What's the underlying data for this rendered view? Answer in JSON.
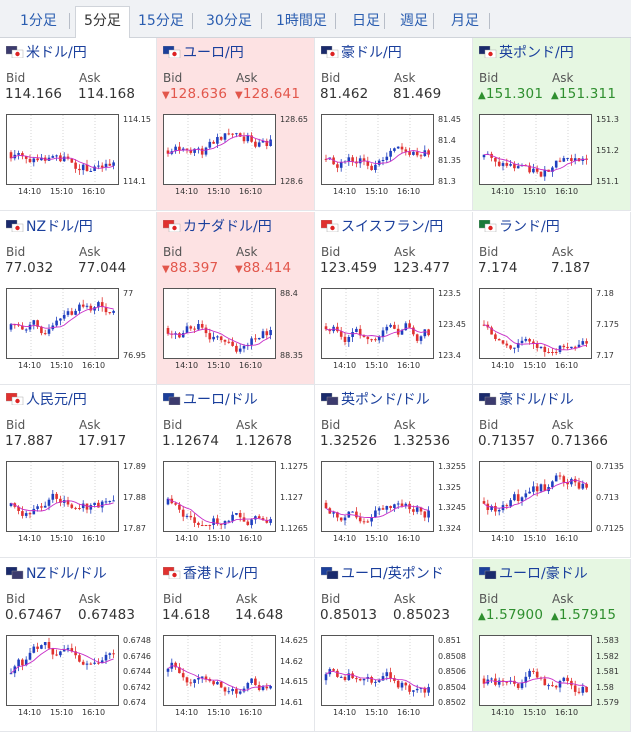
{
  "tabs": [
    "1分足",
    "5分足",
    "15分足",
    "30分足",
    "1時間足",
    "日足",
    "週足",
    "月足"
  ],
  "active_tab": 1,
  "labels": {
    "bid": "Bid",
    "ask": "Ask"
  },
  "time_labels": [
    "14:10",
    "15:10",
    "16:10"
  ],
  "colors": {
    "up_candle": "#1f3fbf",
    "down_candle": "#e0312f",
    "ma_line": "#c82ec8",
    "down_bg": "#fde2e3",
    "up_bg": "#e6f7e2"
  },
  "pairs": [
    {
      "name": "米ドル/円",
      "flag": "us-jp-flag-icon",
      "bid": "114.166",
      "ask": "114.168",
      "trend": "none",
      "yticks": [
        "114.15",
        "114.1"
      ]
    },
    {
      "name": "ユーロ/円",
      "flag": "eu-jp-flag-icon",
      "bid": "128.636",
      "ask": "128.641",
      "trend": "down",
      "yticks": [
        "128.65",
        "128.6"
      ]
    },
    {
      "name": "豪ドル/円",
      "flag": "au-jp-flag-icon",
      "bid": "81.462",
      "ask": "81.469",
      "trend": "none",
      "yticks": [
        "81.45",
        "81.4",
        "81.35",
        "81.3"
      ]
    },
    {
      "name": "英ポンド/円",
      "flag": "gb-jp-flag-icon",
      "bid": "151.301",
      "ask": "151.311",
      "trend": "up",
      "yticks": [
        "151.3",
        "151.2",
        "151.1"
      ]
    },
    {
      "name": "NZドル/円",
      "flag": "nz-jp-flag-icon",
      "bid": "77.032",
      "ask": "77.044",
      "trend": "none",
      "yticks": [
        "77",
        "76.95"
      ]
    },
    {
      "name": "カナダドル/円",
      "flag": "ca-jp-flag-icon",
      "bid": "88.397",
      "ask": "88.414",
      "trend": "down",
      "yticks": [
        "88.4",
        "88.35"
      ]
    },
    {
      "name": "スイスフラン/円",
      "flag": "ch-jp-flag-icon",
      "bid": "123.459",
      "ask": "123.477",
      "trend": "none",
      "yticks": [
        "123.5",
        "123.45",
        "123.4"
      ]
    },
    {
      "name": "ランド/円",
      "flag": "za-jp-flag-icon",
      "bid": "7.174",
      "ask": "7.187",
      "trend": "none",
      "yticks": [
        "7.18",
        "7.175",
        "7.17"
      ]
    },
    {
      "name": "人民元/円",
      "flag": "cn-jp-flag-icon",
      "bid": "17.887",
      "ask": "17.917",
      "trend": "none",
      "yticks": [
        "17.89",
        "17.88",
        "17.87"
      ]
    },
    {
      "name": "ユーロ/ドル",
      "flag": "eu-us-flag-icon",
      "bid": "1.12674",
      "ask": "1.12678",
      "trend": "none",
      "yticks": [
        "1.1275",
        "1.127",
        "1.1265"
      ]
    },
    {
      "name": "英ポンド/ドル",
      "flag": "gb-us-flag-icon",
      "bid": "1.32526",
      "ask": "1.32536",
      "trend": "none",
      "yticks": [
        "1.3255",
        "1.325",
        "1.3245",
        "1.324"
      ]
    },
    {
      "name": "豪ドル/ドル",
      "flag": "au-us-flag-icon",
      "bid": "0.71357",
      "ask": "0.71366",
      "trend": "none",
      "yticks": [
        "0.7135",
        "0.713",
        "0.7125"
      ]
    },
    {
      "name": "NZドル/ドル",
      "flag": "nz-us-flag-icon",
      "bid": "0.67467",
      "ask": "0.67483",
      "trend": "none",
      "yticks": [
        "0.6748",
        "0.6746",
        "0.6744",
        "0.6742",
        "0.674"
      ]
    },
    {
      "name": "香港ドル/円",
      "flag": "hk-jp-flag-icon",
      "bid": "14.618",
      "ask": "14.648",
      "trend": "none",
      "yticks": [
        "14.625",
        "14.62",
        "14.615",
        "14.61"
      ]
    },
    {
      "name": "ユーロ/英ポンド",
      "flag": "eu-gb-flag-icon",
      "bid": "0.85013",
      "ask": "0.85023",
      "trend": "none",
      "yticks": [
        "0.851",
        "0.8508",
        "0.8506",
        "0.8504",
        "0.8502"
      ]
    },
    {
      "name": "ユーロ/豪ドル",
      "flag": "eu-au-flag-icon",
      "bid": "1.57900",
      "ask": "1.57915",
      "trend": "up",
      "yticks": [
        "1.583",
        "1.582",
        "1.581",
        "1.58",
        "1.579"
      ]
    }
  ]
}
